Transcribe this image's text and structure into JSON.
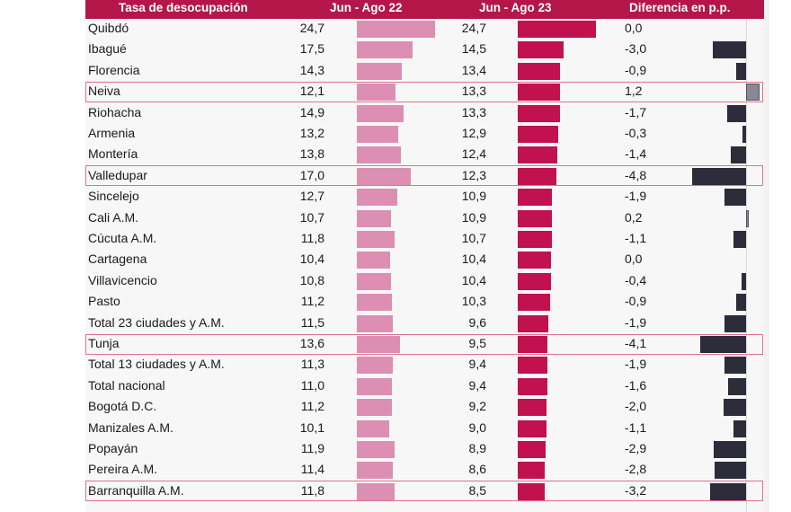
{
  "chart_data": {
    "type": "table",
    "title": "Tasa de desocupación",
    "columns": [
      "Tasa de desocupación",
      "Jun - Ago 22",
      "Jun - Ago 23",
      "Diferencia en p.p."
    ],
    "highlighted": [
      "Neiva",
      "Valledupar",
      "Tunja",
      "Barranquilla A.M."
    ],
    "rows": [
      {
        "city": "Quibdó",
        "v22": "24,7",
        "v23": "24,7",
        "diff": "0,0"
      },
      {
        "city": "Ibagué",
        "v22": "17,5",
        "v23": "14,5",
        "diff": "-3,0"
      },
      {
        "city": "Florencia",
        "v22": "14,3",
        "v23": "13,4",
        "diff": "-0,9"
      },
      {
        "city": "Neiva",
        "v22": "12,1",
        "v23": "13,3",
        "diff": "1,2"
      },
      {
        "city": "Riohacha",
        "v22": "14,9",
        "v23": "13,3",
        "diff": "-1,7"
      },
      {
        "city": "Armenia",
        "v22": "13,2",
        "v23": "12,9",
        "diff": "-0,3"
      },
      {
        "city": "Montería",
        "v22": "13,8",
        "v23": "12,4",
        "diff": "-1,4"
      },
      {
        "city": "Valledupar",
        "v22": "17,0",
        "v23": "12,3",
        "diff": "-4,8"
      },
      {
        "city": "Sincelejo",
        "v22": "12,7",
        "v23": "10,9",
        "diff": "-1,9"
      },
      {
        "city": "Cali A.M.",
        "v22": "10,7",
        "v23": "10,9",
        "diff": "0,2"
      },
      {
        "city": "Cúcuta A.M.",
        "v22": "11,8",
        "v23": "10,7",
        "diff": "-1,1"
      },
      {
        "city": "Cartagena",
        "v22": "10,4",
        "v23": "10,4",
        "diff": "0,0"
      },
      {
        "city": "Villavicencio",
        "v22": "10,8",
        "v23": "10,4",
        "diff": "-0,4"
      },
      {
        "city": "Pasto",
        "v22": "11,2",
        "v23": "10,3",
        "diff": "-0,9"
      },
      {
        "city": "Total 23 ciudades y A.M.",
        "v22": "11,5",
        "v23": "9,6",
        "diff": "-1,9"
      },
      {
        "city": "Tunja",
        "v22": "13,6",
        "v23": "9,5",
        "diff": "-4,1"
      },
      {
        "city": "Total 13 ciudades y A.M.",
        "v22": "11,3",
        "v23": "9,4",
        "diff": "-1,9"
      },
      {
        "city": "Total nacional",
        "v22": "11,0",
        "v23": "9,4",
        "diff": "-1,6"
      },
      {
        "city": "Bogotá D.C.",
        "v22": "11,2",
        "v23": "9,2",
        "diff": "-2,0"
      },
      {
        "city": "Manizales A.M.",
        "v22": "10,1",
        "v23": "9,0",
        "diff": "-1,1"
      },
      {
        "city": "Popayán",
        "v22": "11,9",
        "v23": "8,9",
        "diff": "-2,9"
      },
      {
        "city": "Pereira A.M.",
        "v22": "11,4",
        "v23": "8,6",
        "diff": "-2,8"
      },
      {
        "city": "Barranquilla A.M.",
        "v22": "11,8",
        "v23": "8,5",
        "diff": "-3,2"
      }
    ],
    "colors": {
      "header": "#b5164a",
      "bar_2022": "#dc8fb2",
      "bar_2023": "#c2114f",
      "bar_diff_negative": "#2d2c3a",
      "bar_diff_positive": "#8c8797",
      "highlight_border": "#e1728f"
    }
  }
}
